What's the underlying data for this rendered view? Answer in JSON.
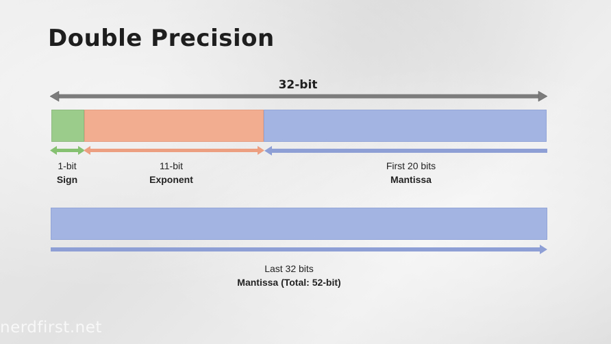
{
  "title": "Double Precision",
  "word_size_label": "32-bit",
  "segments": {
    "sign": {
      "bits_label": "1-bit",
      "name": "Sign",
      "color": "#9ccc8c"
    },
    "exponent": {
      "bits_label": "11-bit",
      "name": "Exponent",
      "color": "#f2ac90"
    },
    "mantissa_high": {
      "bits_label": "First 20 bits",
      "name": "Mantissa",
      "color": "#a3b3e2"
    },
    "mantissa_low": {
      "bits_label": "Last 32 bits",
      "name": "Mantissa (Total: 52-bit)",
      "color": "#a3b3e2"
    }
  },
  "watermark": "nerdfirst.net",
  "colors": {
    "arrow_top": "#7c7c7c",
    "arrow_sign": "#86c071",
    "arrow_exponent": "#ed9f82",
    "arrow_mantissa": "#8e9fd6"
  }
}
